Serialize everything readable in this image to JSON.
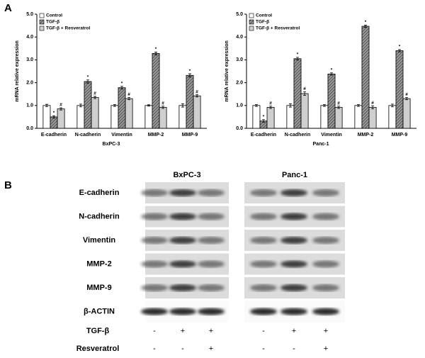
{
  "chart_data": [
    {
      "type": "bar",
      "xlabel": "BxPC-3",
      "ylabel": "mRNA relative expression",
      "categories": [
        "E-cadherin",
        "N-cadherin",
        "Vimentin",
        "MMP-2",
        "MMP-9"
      ],
      "series": [
        {
          "name": "Control",
          "color": "#ffffff",
          "values": [
            1.0,
            1.0,
            1.0,
            1.0,
            1.0
          ],
          "errors": [
            0.05,
            0.06,
            0.04,
            0.03,
            0.07
          ]
        },
        {
          "name": "TGF-β",
          "color": "#6e6e6e",
          "hatch": true,
          "values": [
            0.5,
            2.05,
            1.78,
            3.28,
            2.32
          ],
          "errors": [
            0.05,
            0.07,
            0.06,
            0.06,
            0.07
          ],
          "markers": [
            "*",
            "*",
            "*",
            "*",
            "*"
          ]
        },
        {
          "name": "TGF-β + Resveratrol",
          "color": "#cfcfcf",
          "values": [
            0.85,
            1.35,
            1.3,
            0.92,
            1.42
          ],
          "errors": [
            0.05,
            0.05,
            0.05,
            0.05,
            0.05
          ],
          "markers": [
            "#",
            "#",
            "#",
            "#",
            "#"
          ]
        }
      ],
      "ylim": [
        0,
        5
      ],
      "yticks": [
        {
          "value": 0,
          "label": "0.0"
        },
        {
          "value": 1,
          "label": "1.0"
        },
        {
          "value": 2,
          "label": "2.0"
        },
        {
          "value": 3,
          "label": "3.0"
        },
        {
          "value": 4,
          "label": "4.0"
        },
        {
          "value": 5,
          "label": "5.0"
        }
      ],
      "legend": "top-left"
    },
    {
      "type": "bar",
      "xlabel": "Panc-1",
      "ylabel": "mRNA relative expression",
      "categories": [
        "E-cadherin",
        "N-cadherin",
        "Vimentin",
        "MMP-2",
        "MMP-9"
      ],
      "series": [
        {
          "name": "Control",
          "color": "#ffffff",
          "values": [
            1.0,
            1.0,
            1.0,
            1.0,
            1.0
          ],
          "errors": [
            0.04,
            0.07,
            0.04,
            0.04,
            0.06
          ]
        },
        {
          "name": "TGF-β",
          "color": "#6e6e6e",
          "hatch": true,
          "values": [
            0.32,
            3.05,
            2.38,
            4.47,
            3.4
          ],
          "errors": [
            0.06,
            0.06,
            0.05,
            0.05,
            0.05
          ],
          "markers": [
            "*",
            "*",
            "*",
            "*",
            "*"
          ]
        },
        {
          "name": "TGF-β + Resveratrol",
          "color": "#cfcfcf",
          "values": [
            0.92,
            1.52,
            0.92,
            0.92,
            1.3
          ],
          "errors": [
            0.05,
            0.08,
            0.05,
            0.07,
            0.05
          ],
          "markers": [
            "#",
            "#",
            "#",
            "#",
            "#"
          ]
        }
      ],
      "ylim": [
        0,
        5
      ],
      "yticks": [
        {
          "value": 0,
          "label": "0.0"
        },
        {
          "value": 1,
          "label": "1.0"
        },
        {
          "value": 2,
          "label": "2.0"
        },
        {
          "value": 3,
          "label": "3.0"
        },
        {
          "value": 4,
          "label": "4.0"
        },
        {
          "value": 5,
          "label": "5.0"
        }
      ],
      "legend": "top-left"
    }
  ],
  "panel_labels": [
    "A",
    "B"
  ],
  "blot": {
    "cell_lines": [
      "BxPC-3",
      "Panc-1"
    ],
    "proteins": [
      "E-cadherin",
      "N-cadherin",
      "Vimentin",
      "MMP-2",
      "MMP-9",
      "β-ACTIN"
    ],
    "treatments": [
      {
        "name": "TGF-β",
        "signs": [
          "-",
          "+",
          "+",
          "-",
          "+",
          "+"
        ]
      },
      {
        "name": "Resveratrol",
        "signs": [
          "-",
          "-",
          "+",
          "-",
          "-",
          "+"
        ]
      }
    ]
  }
}
